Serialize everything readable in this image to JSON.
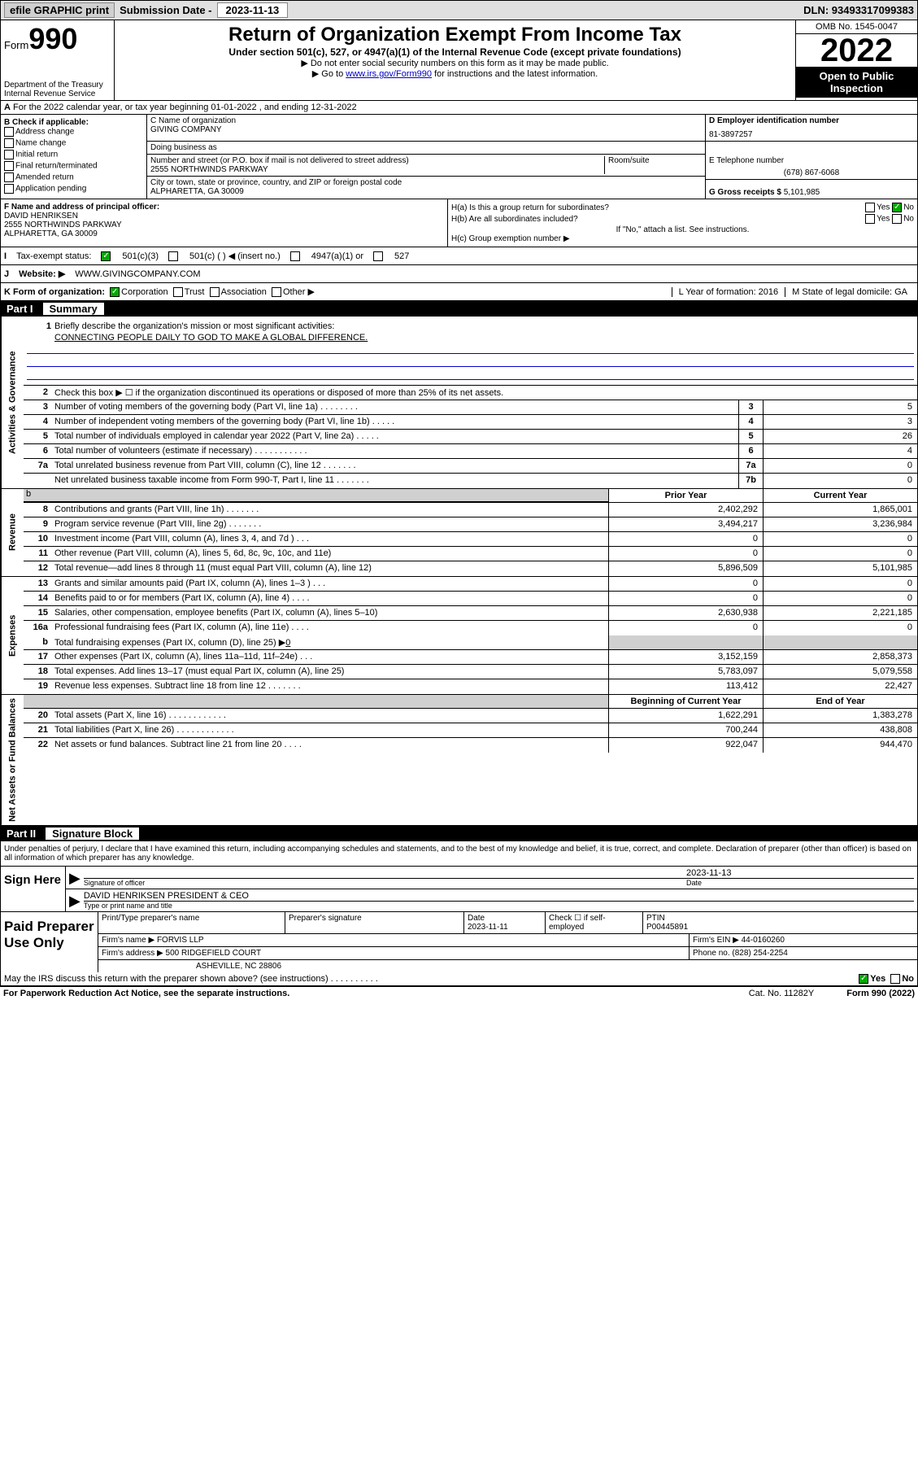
{
  "topbar": {
    "efile": "efile GRAPHIC print",
    "sub_label": "Submission Date - ",
    "sub_date": "2023-11-13",
    "dln": "DLN: 93493317099383"
  },
  "header": {
    "form": "Form",
    "num": "990",
    "dept": "Department of the Treasury\nInternal Revenue Service",
    "title": "Return of Organization Exempt From Income Tax",
    "sub1": "Under section 501(c), 527, or 4947(a)(1) of the Internal Revenue Code (except private foundations)",
    "sub2": "▶ Do not enter social security numbers on this form as it may be made public.",
    "sub3_pre": "▶ Go to ",
    "sub3_link": "www.irs.gov/Form990",
    "sub3_post": " for instructions and the latest information.",
    "omb": "OMB No. 1545-0047",
    "year": "2022",
    "open": "Open to Public Inspection"
  },
  "row_a": "For the 2022 calendar year, or tax year beginning 01-01-2022   , and ending 12-31-2022",
  "check_b": {
    "title": "B Check if applicable:",
    "opts": [
      "Address change",
      "Name change",
      "Initial return",
      "Final return/terminated",
      "Amended return",
      "Application pending"
    ]
  },
  "org": {
    "name_label": "C Name of organization",
    "name": "GIVING COMPANY",
    "dba_label": "Doing business as",
    "dba": "",
    "street_label": "Number and street (or P.O. box if mail is not delivered to street address)",
    "street": "2555 NORTHWINDS PARKWAY",
    "suite_label": "Room/suite",
    "suite": "",
    "city_label": "City or town, state or province, country, and ZIP or foreign postal code",
    "city": "ALPHARETTA, GA  30009",
    "ein_label": "D Employer identification number",
    "ein": "81-3897257",
    "tel_label": "E Telephone number",
    "tel": "(678) 867-6068",
    "gross_label": "G Gross receipts $ ",
    "gross": "5,101,985"
  },
  "officer": {
    "f_label": "F  Name and address of principal officer:",
    "name": "DAVID HENRIKSEN",
    "addr1": "2555 NORTHWINDS PARKWAY",
    "addr2": "ALPHARETTA, GA  30009"
  },
  "h": {
    "ha": "H(a)  Is this a group return for subordinates?",
    "hb": "H(b)  Are all subordinates included?",
    "hb_note": "If \"No,\" attach a list. See instructions.",
    "hc": "H(c)  Group exemption number ▶",
    "yes": "Yes",
    "no": "No"
  },
  "row_i": {
    "label": "Tax-exempt status:",
    "o1": "501(c)(3)",
    "o2": "501(c) (  ) ◀ (insert no.)",
    "o3": "4947(a)(1) or",
    "o4": "527"
  },
  "row_j": {
    "label": "Website: ▶",
    "val": "WWW.GIVINGCOMPANY.COM"
  },
  "row_k": {
    "label": "K Form of organization:",
    "o1": "Corporation",
    "o2": "Trust",
    "o3": "Association",
    "o4": "Other ▶",
    "l": "L Year of formation: 2016",
    "m": "M State of legal domicile: GA"
  },
  "part1": {
    "label": "Part I",
    "title": "Summary"
  },
  "side": {
    "gov": "Activities & Governance",
    "rev": "Revenue",
    "exp": "Expenses",
    "net": "Net Assets or Fund Balances"
  },
  "mission": {
    "label": "Briefly describe the organization's mission or most significant activities:",
    "text": "CONNECTING PEOPLE DAILY TO GOD TO MAKE A GLOBAL DIFFERENCE."
  },
  "line2": "Check this box ▶ ☐  if the organization discontinued its operations or disposed of more than 25% of its net assets.",
  "gov_rows": [
    {
      "n": "3",
      "t": "Number of voting members of the governing body (Part VI, line 1a)  .    .    .    .    .    .    .    .",
      "l": "3",
      "v": "5"
    },
    {
      "n": "4",
      "t": "Number of independent voting members of the governing body (Part VI, line 1b)   .    .    .    .    .",
      "l": "4",
      "v": "3"
    },
    {
      "n": "5",
      "t": "Total number of individuals employed in calendar year 2022 (Part V, line 2a)    .    .    .    .    .",
      "l": "5",
      "v": "26"
    },
    {
      "n": "6",
      "t": "Total number of volunteers (estimate if necessary)   .    .    .    .    .    .    .    .    .    .    .",
      "l": "6",
      "v": "4"
    },
    {
      "n": "7a",
      "t": "Total unrelated business revenue from Part VIII, column (C), line 12   .    .    .    .    .    .    .",
      "l": "7a",
      "v": "0"
    },
    {
      "n": "",
      "t": "Net unrelated business taxable income from Form 990-T, Part I, line 11   .    .    .    .    .    .    .",
      "l": "7b",
      "v": "0"
    }
  ],
  "colhead": {
    "prior": "Prior Year",
    "current": "Current Year"
  },
  "rev_rows": [
    {
      "n": "8",
      "t": "Contributions and grants (Part VIII, line 1h)    .    .    .    .    .    .    .",
      "p": "2,402,292",
      "c": "1,865,001"
    },
    {
      "n": "9",
      "t": "Program service revenue (Part VIII, line 2g)   .    .    .    .    .    .    .",
      "p": "3,494,217",
      "c": "3,236,984"
    },
    {
      "n": "10",
      "t": "Investment income (Part VIII, column (A), lines 3, 4, and 7d )    .    .    .",
      "p": "0",
      "c": "0"
    },
    {
      "n": "11",
      "t": "Other revenue (Part VIII, column (A), lines 5, 6d, 8c, 9c, 10c, and 11e)",
      "p": "0",
      "c": "0"
    },
    {
      "n": "12",
      "t": "Total revenue—add lines 8 through 11 (must equal Part VIII, column (A), line 12)",
      "p": "5,896,509",
      "c": "5,101,985"
    }
  ],
  "exp_rows": [
    {
      "n": "13",
      "t": "Grants and similar amounts paid (Part IX, column (A), lines 1–3 )   .    .    .",
      "p": "0",
      "c": "0"
    },
    {
      "n": "14",
      "t": "Benefits paid to or for members (Part IX, column (A), line 4)   .    .    .    .",
      "p": "0",
      "c": "0"
    },
    {
      "n": "15",
      "t": "Salaries, other compensation, employee benefits (Part IX, column (A), lines 5–10)",
      "p": "2,630,938",
      "c": "2,221,185"
    },
    {
      "n": "16a",
      "t": "Professional fundraising fees (Part IX, column (A), line 11e)    .    .    .    .",
      "p": "0",
      "c": "0"
    }
  ],
  "line16b": {
    "n": "b",
    "t": "Total fundraising expenses (Part IX, column (D), line 25) ▶",
    "v": "0"
  },
  "exp_rows2": [
    {
      "n": "17",
      "t": "Other expenses (Part IX, column (A), lines 11a–11d, 11f–24e)  .    .    .",
      "p": "3,152,159",
      "c": "2,858,373"
    },
    {
      "n": "18",
      "t": "Total expenses. Add lines 13–17 (must equal Part IX, column (A), line 25)",
      "p": "5,783,097",
      "c": "5,079,558"
    },
    {
      "n": "19",
      "t": "Revenue less expenses. Subtract line 18 from line 12  .    .    .    .    .    .    .",
      "p": "113,412",
      "c": "22,427"
    }
  ],
  "colhead2": {
    "beg": "Beginning of Current Year",
    "end": "End of Year"
  },
  "net_rows": [
    {
      "n": "20",
      "t": "Total assets (Part X, line 16)   .    .    .    .    .    .    .    .    .    .    .    .",
      "p": "1,622,291",
      "c": "1,383,278"
    },
    {
      "n": "21",
      "t": "Total liabilities (Part X, line 26)  .    .    .    .    .    .    .    .    .    .    .    .",
      "p": "700,244",
      "c": "438,808"
    },
    {
      "n": "22",
      "t": "Net assets or fund balances. Subtract line 21 from line 20   .    .    .    .",
      "p": "922,047",
      "c": "944,470"
    }
  ],
  "part2": {
    "label": "Part II",
    "title": "Signature Block"
  },
  "penalty": "Under penalties of perjury, I declare that I have examined this return, including accompanying schedules and statements, and to the best of my knowledge and belief, it is true, correct, and complete. Declaration of preparer (other than officer) is based on all information of which preparer has any knowledge.",
  "sign": {
    "here": "Sign Here",
    "sig_label": "Signature of officer",
    "date": "2023-11-13",
    "date_label": "Date",
    "name": "DAVID HENRIKSEN  PRESIDENT & CEO",
    "name_label": "Type or print name and title"
  },
  "prep": {
    "title": "Paid Preparer Use Only",
    "h1": "Print/Type preparer's name",
    "h2": "Preparer's signature",
    "h3": "Date",
    "date": "2023-11-11",
    "h4": "Check ☐ if self-employed",
    "h5": "PTIN",
    "ptin": "P00445891",
    "firm_label": "Firm's name    ▶",
    "firm": "FORVIS LLP",
    "ein_label": "Firm's EIN ▶",
    "ein": "44-0160260",
    "addr_label": "Firm's address ▶",
    "addr1": "500 RIDGEFIELD COURT",
    "addr2": "ASHEVILLE, NC  28806",
    "phone_label": "Phone no.",
    "phone": "(828) 254-2254"
  },
  "discuss": "May the IRS discuss this return with the preparer shown above? (see instructions)   .    .    .    .    .    .    .    .    .    .",
  "footer": {
    "left": "For Paperwork Reduction Act Notice, see the separate instructions.",
    "mid": "Cat. No. 11282Y",
    "right": "Form 990 (2022)"
  }
}
